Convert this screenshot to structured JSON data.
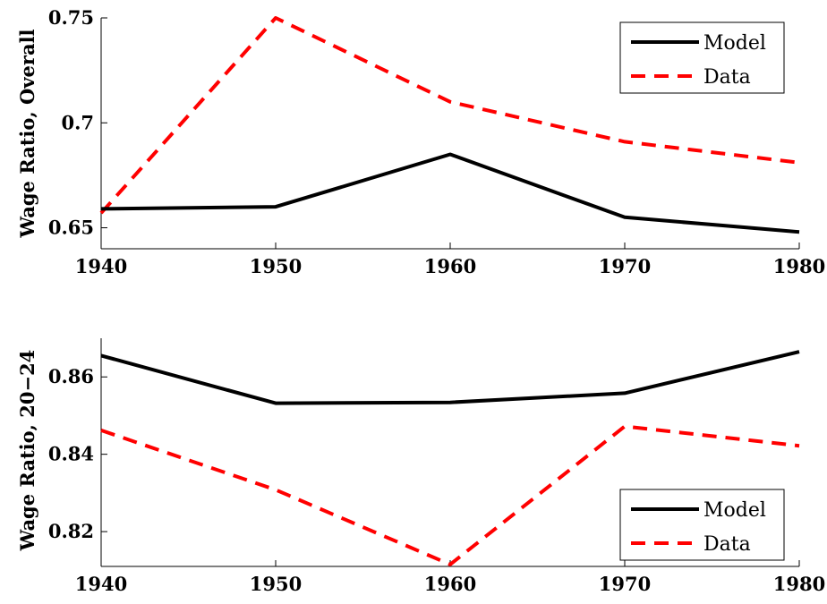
{
  "chart_data": [
    {
      "type": "line",
      "xlabel": "",
      "ylabel": "Wage Ratio, Overall",
      "x": [
        1940,
        1950,
        1960,
        1970,
        1980
      ],
      "x_ticks": [
        "1940",
        "1950",
        "1960",
        "1970",
        "1980"
      ],
      "y_ticks": [
        "0.65",
        "0.7",
        "0.75"
      ],
      "xlim": [
        1940,
        1980
      ],
      "ylim": [
        0.64,
        0.75
      ],
      "series": [
        {
          "name": "Model",
          "color": "#000000",
          "style": "solid",
          "values": [
            0.659,
            0.66,
            0.685,
            0.655,
            0.648
          ]
        },
        {
          "name": "Data",
          "color": "#ff0000",
          "style": "dashed",
          "values": [
            0.657,
            0.75,
            0.71,
            0.691,
            0.681
          ]
        }
      ],
      "legend": "top-right",
      "grid": false
    },
    {
      "type": "line",
      "xlabel": "",
      "ylabel": "Wage Ratio, 20−24",
      "x": [
        1940,
        1950,
        1960,
        1970,
        1980
      ],
      "x_ticks": [
        "1940",
        "1950",
        "1960",
        "1970",
        "1980"
      ],
      "y_ticks": [
        "0.82",
        "0.84",
        "0.86"
      ],
      "xlim": [
        1940,
        1980
      ],
      "ylim": [
        0.811,
        0.87
      ],
      "series": [
        {
          "name": "Model",
          "color": "#000000",
          "style": "solid",
          "values": [
            0.8655,
            0.8532,
            0.8534,
            0.8558,
            0.8665
          ]
        },
        {
          "name": "Data",
          "color": "#ff0000",
          "style": "dashed",
          "values": [
            0.8462,
            0.8308,
            0.8115,
            0.8472,
            0.8422
          ]
        }
      ],
      "legend": "bottom-right",
      "grid": false
    }
  ]
}
